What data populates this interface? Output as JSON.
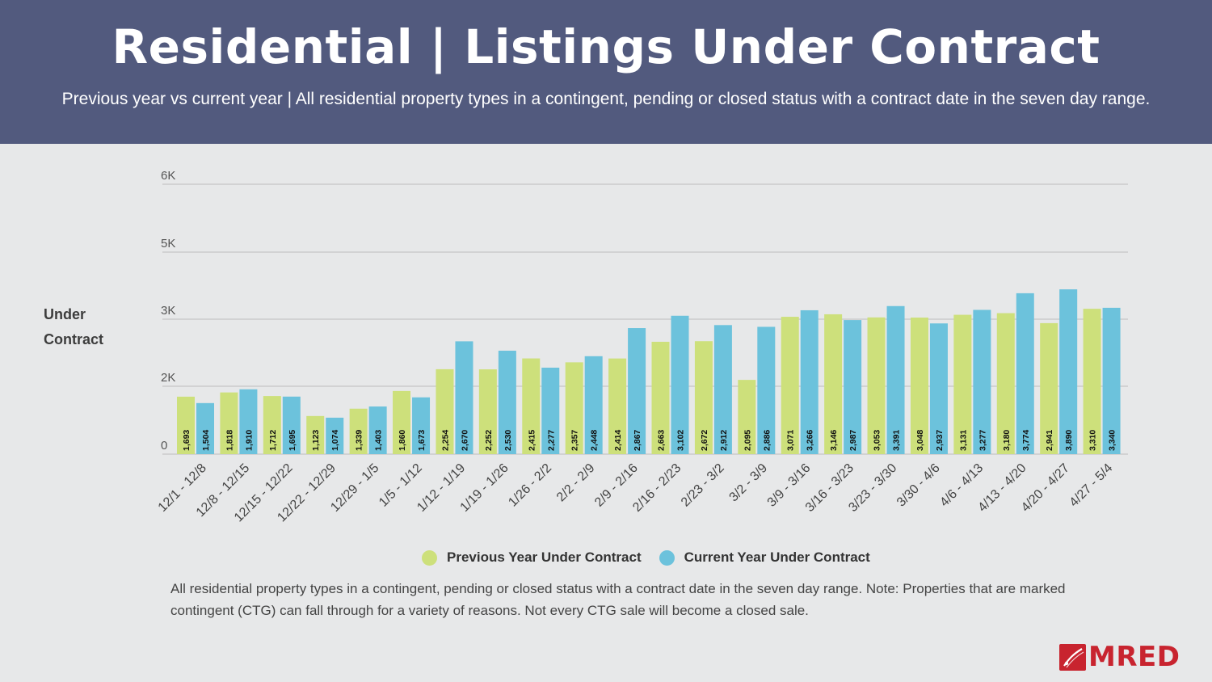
{
  "header": {
    "title": "Residential | Listings Under Contract",
    "subtitle": "Previous year vs current year | All residential property types in a contingent, pending or closed status with a contract date in the seven day range."
  },
  "y_axis_title": "Under Contract",
  "legend": {
    "previous": "Previous Year Under Contract",
    "current": "Current Year Under Contract"
  },
  "note": "All residential property types in a contingent, pending or closed status with a contract date in the seven day range. Note: Properties that are marked contingent (CTG) can fall through for a variety of reasons. Not every CTG sale will become a closed sale.",
  "logo": {
    "text": "MRED"
  },
  "colors": {
    "previous": "#cde07b",
    "current": "#6cc2dc",
    "header": "#525a7e"
  },
  "chart_data": {
    "type": "bar",
    "xlabel": "",
    "ylabel": "Under Contract",
    "ylim": [
      0,
      6000
    ],
    "yticks": [
      {
        "value": 0,
        "label": "0"
      },
      {
        "value": 2000,
        "label": "2K"
      },
      {
        "value": 3000,
        "label": "3K"
      },
      {
        "value": 5000,
        "label": "5K"
      },
      {
        "value": 6000,
        "label": "6K"
      }
    ],
    "grid": true,
    "legend_position": "bottom",
    "categories": [
      "12/1 - 12/8",
      "12/8 - 12/15",
      "12/15 - 12/22",
      "12/22 - 12/29",
      "12/29 - 1/5",
      "1/5 - 1/12",
      "1/12 - 1/19",
      "1/19 - 1/26",
      "1/26 - 2/2",
      "2/2 - 2/9",
      "2/9 - 2/16",
      "2/16 - 2/23",
      "2/23 - 3/2",
      "3/2 - 3/9",
      "3/9 - 3/16",
      "3/16 - 3/23",
      "3/23 - 3/30",
      "3/30 - 4/6",
      "4/6 - 4/13",
      "4/13 - 4/20",
      "4/20 - 4/27",
      "4/27 - 5/4"
    ],
    "series": [
      {
        "name": "Previous Year Under Contract",
        "values": [
          1693,
          1818,
          1712,
          1123,
          1339,
          1860,
          2254,
          2252,
          2415,
          2357,
          2414,
          2663,
          2672,
          2095,
          3071,
          3146,
          3053,
          3048,
          3131,
          3180,
          2941,
          3310
        ],
        "labels": [
          "1,693",
          "1,818",
          "1,712",
          "1,123",
          "1,339",
          "1,860",
          "2,254",
          "2,252",
          "2,415",
          "2,357",
          "2,414",
          "2,663",
          "2,672",
          "2,095",
          "3,071",
          "3,146",
          "3,053",
          "3,048",
          "3,131",
          "3,180",
          "2,941",
          "3,310"
        ]
      },
      {
        "name": "Current Year Under Contract",
        "values": [
          1504,
          1910,
          1695,
          1074,
          1403,
          1673,
          2670,
          2530,
          2277,
          2448,
          2867,
          3102,
          2912,
          2886,
          3266,
          2987,
          3391,
          2937,
          3277,
          3774,
          3890,
          3340
        ],
        "labels": [
          "1,504",
          "1,910",
          "1,695",
          "1,074",
          "1,403",
          "1,673",
          "2,670",
          "2,530",
          "2,277",
          "2,448",
          "2,867",
          "3,102",
          "2,912",
          "2,886",
          "3,266",
          "2,987",
          "3,391",
          "2,937",
          "3,277",
          "3,774",
          "3,890",
          "3,340"
        ]
      }
    ]
  }
}
